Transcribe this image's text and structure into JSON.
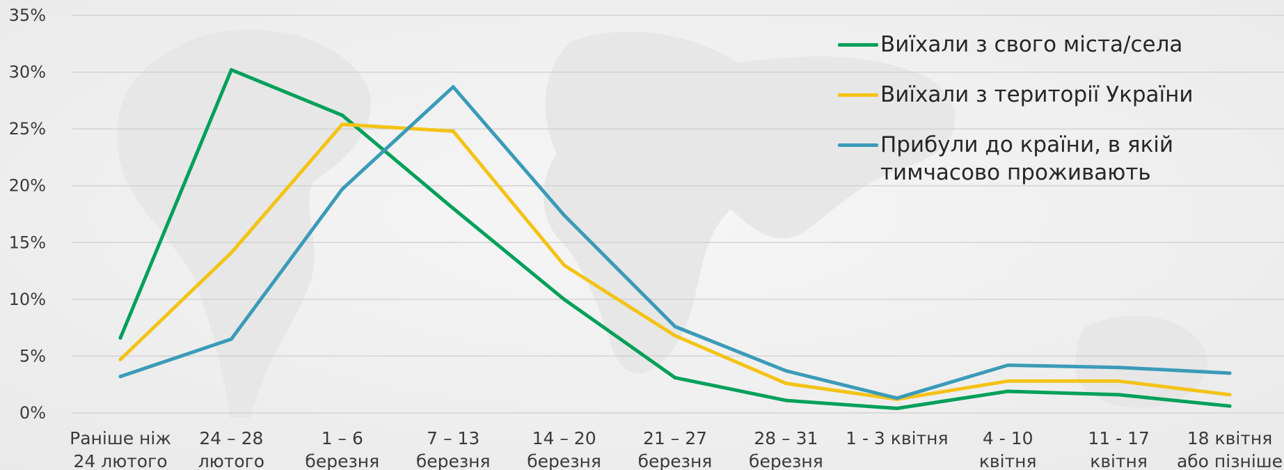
{
  "chart_data": {
    "type": "line",
    "title": "",
    "xlabel": "",
    "ylabel": "",
    "ylim": [
      0,
      35
    ],
    "y_ticks": [
      "0%",
      "5%",
      "10%",
      "15%",
      "20%",
      "25%",
      "30%",
      "35%"
    ],
    "y_tick_values": [
      0,
      5,
      10,
      15,
      20,
      25,
      30,
      35
    ],
    "grid": true,
    "legend_position": "top-right",
    "categories": [
      [
        "Раніше ніж",
        "24 лютого"
      ],
      [
        "24 – 28",
        "лютого"
      ],
      [
        "1 – 6",
        "березня"
      ],
      [
        "7 – 13",
        "березня"
      ],
      [
        "14  – 20",
        "березня"
      ],
      [
        "21 – 27",
        "березня"
      ],
      [
        "28 – 31",
        "березня"
      ],
      [
        "1 - 3 квітня"
      ],
      [
        "4  - 10",
        "квітня"
      ],
      [
        "11  - 17",
        "квітня"
      ],
      [
        "18 квітня",
        "або пізніше"
      ]
    ],
    "series": [
      {
        "name": "Виїхали з свого міста/села",
        "color": "#00a05a",
        "values": [
          6.6,
          30.2,
          26.2,
          18.0,
          10.0,
          3.1,
          1.1,
          0.4,
          1.9,
          1.6,
          0.6
        ]
      },
      {
        "name": "Виїхали з території України",
        "color": "#f3c316",
        "values": [
          4.7,
          14.1,
          25.4,
          24.8,
          13.0,
          6.8,
          2.6,
          1.2,
          2.8,
          2.8,
          1.6
        ]
      },
      {
        "name": "Прибули до країни, в якій тимчасово проживають",
        "color": "#3a9bb8",
        "values": [
          3.2,
          6.5,
          19.7,
          28.7,
          17.4,
          7.6,
          3.7,
          1.3,
          4.2,
          4.0,
          3.5
        ]
      }
    ]
  }
}
